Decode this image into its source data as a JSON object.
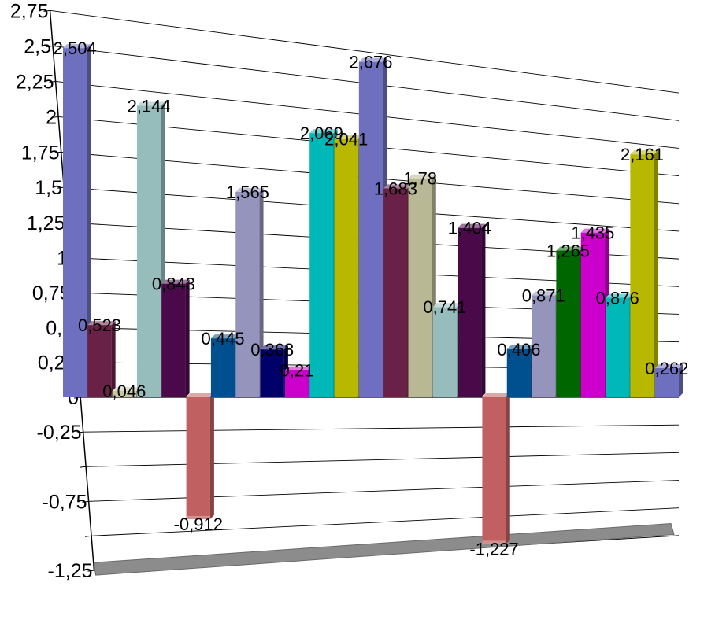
{
  "chart_data": {
    "type": "bar",
    "title": "",
    "xlabel": "",
    "ylabel": "",
    "ylim": [
      -1.25,
      2.75
    ],
    "grid": true,
    "legend": "none",
    "y_ticks": [
      "2,75",
      "2,5",
      "2,25",
      "2",
      "1,75",
      "1,5",
      "1,25",
      "1",
      "0,75",
      "0,5",
      "0,25",
      "0",
      "-0,25",
      "-0,75",
      "-1,25"
    ],
    "bars": [
      {
        "value": 2.504,
        "label": "2,504",
        "color": "#6f6fbf"
      },
      {
        "value": 0.523,
        "label": "0,523",
        "color": "#6a2147"
      },
      {
        "value": 0.046,
        "label": "0,046",
        "color": "#c8c8a0"
      },
      {
        "value": 2.144,
        "label": "2,144",
        "color": "#96bcbc"
      },
      {
        "value": 0.843,
        "label": "0,843",
        "color": "#4a0a4a"
      },
      {
        "value": -0.912,
        "label": "-0,912",
        "color": "#c06060"
      },
      {
        "value": 0.445,
        "label": "0,445",
        "color": "#00508f"
      },
      {
        "value": 1.565,
        "label": "1,565",
        "color": "#9494bd"
      },
      {
        "value": 0.368,
        "label": "0,368",
        "color": "#000068"
      },
      {
        "value": 0.21,
        "label": "0,21",
        "color": "#cc00cc"
      },
      {
        "value": 2.069,
        "label": "2,069",
        "color": "#00b8b8"
      },
      {
        "value": 2.041,
        "label": "2,041",
        "color": "#b8b800"
      },
      {
        "value": 2.676,
        "label": "2,676",
        "color": "#6f6fbf"
      },
      {
        "value": 1.683,
        "label": "1,683",
        "color": "#6a2147"
      },
      {
        "value": 1.78,
        "label": "1,78",
        "color": "#b8b894"
      },
      {
        "value": 0.741,
        "label": "0,741",
        "color": "#96bcbc"
      },
      {
        "value": 1.404,
        "label": "1,404",
        "color": "#4a0a4a"
      },
      {
        "value": -1.227,
        "label": "-1,227",
        "color": "#c06060"
      },
      {
        "value": 0.406,
        "label": "0,406",
        "color": "#00508f"
      },
      {
        "value": 0.871,
        "label": "0,871",
        "color": "#9494bd"
      },
      {
        "value": 1.265,
        "label": "1,265",
        "color": "#006600"
      },
      {
        "value": 1.435,
        "label": "1,435",
        "color": "#cc00cc"
      },
      {
        "value": 0.876,
        "label": "0,876",
        "color": "#00b8b8"
      },
      {
        "value": 2.161,
        "label": "2,161",
        "color": "#b8b800"
      },
      {
        "value": 0.262,
        "label": "0,262",
        "color": "#6f6fbf"
      }
    ]
  }
}
